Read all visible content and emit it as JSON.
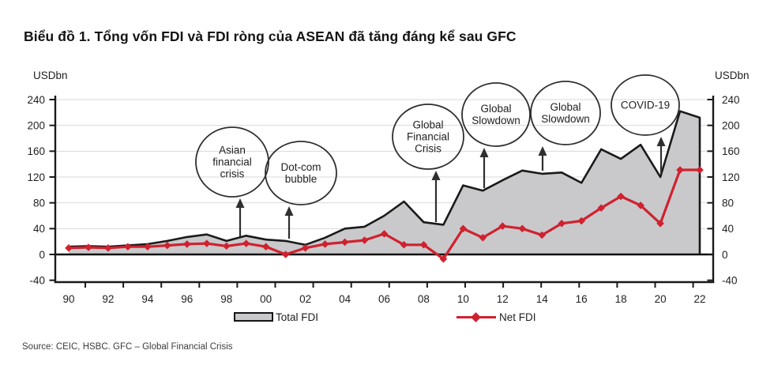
{
  "title": "Biểu đồ 1. Tổng vốn FDI và FDI ròng của ASEAN đã tăng đáng kể sau GFC",
  "source": "Source: CEIC, HSBC. GFC – Global Financial Crisis",
  "colors": {
    "net_fdi_red": "#d0212f",
    "total_fdi_fill": "#c9c9cb",
    "total_fdi_line": "#1a1a1a",
    "gridline": "#d9d9d9",
    "axis": "#1a1a1a",
    "annotation_stroke": "#2f2f2f"
  },
  "chart_data": {
    "type": "area",
    "title": "Biểu đồ 1. Tổng vốn FDI và FDI ròng của ASEAN đã tăng đáng kể sau GFC",
    "ylabel_left": "USDbn",
    "ylabel_right": "USDbn",
    "ylim": [
      -40,
      240
    ],
    "yticks": [
      -40,
      0,
      40,
      80,
      120,
      160,
      200,
      240
    ],
    "grid": "horizontal",
    "legend_position": "bottom",
    "x": [
      1990,
      1991,
      1992,
      1993,
      1994,
      1995,
      1996,
      1997,
      1998,
      1999,
      2000,
      2001,
      2002,
      2003,
      2004,
      2005,
      2006,
      2007,
      2008,
      2009,
      2010,
      2011,
      2012,
      2013,
      2014,
      2015,
      2016,
      2017,
      2018,
      2019,
      2020,
      2021,
      2022
    ],
    "x_tick_labels": [
      "90",
      "92",
      "94",
      "96",
      "98",
      "00",
      "02",
      "04",
      "06",
      "08",
      "10",
      "12",
      "14",
      "16",
      "18",
      "20",
      "22"
    ],
    "series": [
      {
        "name": "Total FDI",
        "type": "area",
        "fill": "#c9c9cb",
        "line": "#1a1a1a",
        "values": [
          12,
          13,
          12,
          14,
          16,
          21,
          27,
          31,
          21,
          29,
          23,
          21,
          15,
          26,
          40,
          43,
          60,
          82,
          50,
          46,
          107,
          99,
          115,
          130,
          125,
          127,
          111,
          163,
          148,
          170,
          120,
          222,
          212
        ]
      },
      {
        "name": "Net FDI",
        "type": "line",
        "color": "#d0212f",
        "marker": "diamond",
        "values": [
          10,
          11,
          10,
          12,
          12,
          14,
          16,
          17,
          13,
          17,
          12,
          0,
          10,
          16,
          19,
          22,
          32,
          15,
          15,
          -7,
          40,
          26,
          44,
          40,
          30,
          48,
          52,
          72,
          90,
          76,
          48,
          131,
          131
        ]
      }
    ],
    "annotations": [
      {
        "lines": [
          "Asian",
          "financial",
          "crisis"
        ],
        "year": 1999
      },
      {
        "lines": [
          "Dot-com",
          "bubble"
        ],
        "year": 2001
      },
      {
        "lines": [
          "Global",
          "Financial",
          "Crisis"
        ],
        "year": 2009
      },
      {
        "lines": [
          "Global",
          "Slowdown"
        ],
        "year": 2011
      },
      {
        "lines": [
          "Global",
          "Slowdown"
        ],
        "year": 2014
      },
      {
        "lines": [
          "COVID-19"
        ],
        "year": 2020
      }
    ]
  }
}
